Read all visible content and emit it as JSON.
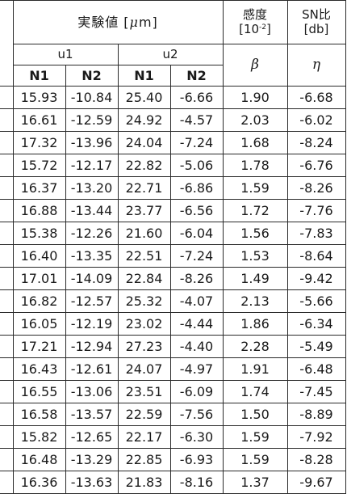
{
  "header": {
    "experimental_prefix": "実験値 [",
    "mu": "μ",
    "experimental_suffix": "m]",
    "sensitivity_title": "感度",
    "sensitivity_unit_prefix": "[10",
    "sensitivity_unit_exp": "-2",
    "sensitivity_unit_suffix": "]",
    "sn_title": "SN比",
    "sn_unit": "[db]",
    "u1": "u1",
    "u2": "u2",
    "beta": "β",
    "eta": "η",
    "n_headers": [
      "N1",
      "N2",
      "N1",
      "N2"
    ]
  },
  "rows": [
    [
      "15.93",
      "-10.84",
      "25.40",
      "-6.66",
      "1.90",
      "-6.68"
    ],
    [
      "16.61",
      "-12.59",
      "24.92",
      "-4.57",
      "2.03",
      "-6.02"
    ],
    [
      "17.32",
      "-13.96",
      "24.04",
      "-7.24",
      "1.68",
      "-8.24"
    ],
    [
      "15.72",
      "-12.17",
      "22.82",
      "-5.06",
      "1.78",
      "-6.76"
    ],
    [
      "16.37",
      "-13.20",
      "22.71",
      "-6.86",
      "1.59",
      "-8.26"
    ],
    [
      "16.88",
      "-13.44",
      "23.77",
      "-6.56",
      "1.72",
      "-7.76"
    ],
    [
      "15.38",
      "-12.26",
      "21.60",
      "-6.04",
      "1.56",
      "-7.83"
    ],
    [
      "16.40",
      "-13.35",
      "22.51",
      "-7.24",
      "1.53",
      "-8.64"
    ],
    [
      "17.01",
      "-14.09",
      "22.84",
      "-8.26",
      "1.49",
      "-9.42"
    ],
    [
      "16.82",
      "-12.57",
      "25.32",
      "-4.07",
      "2.13",
      "-5.66"
    ],
    [
      "16.05",
      "-12.19",
      "23.02",
      "-4.44",
      "1.86",
      "-6.34"
    ],
    [
      "17.21",
      "-12.94",
      "27.23",
      "-4.40",
      "2.28",
      "-5.49"
    ],
    [
      "16.43",
      "-12.61",
      "24.07",
      "-4.97",
      "1.91",
      "-6.48"
    ],
    [
      "16.55",
      "-13.06",
      "23.51",
      "-6.09",
      "1.74",
      "-7.45"
    ],
    [
      "16.58",
      "-13.57",
      "22.59",
      "-7.56",
      "1.50",
      "-8.89"
    ],
    [
      "15.82",
      "-12.65",
      "22.17",
      "-6.30",
      "1.59",
      "-7.92"
    ],
    [
      "16.48",
      "-13.29",
      "22.85",
      "-6.93",
      "1.59",
      "-8.28"
    ],
    [
      "16.36",
      "-13.63",
      "21.83",
      "-8.16",
      "1.37",
      "-9.67"
    ]
  ]
}
